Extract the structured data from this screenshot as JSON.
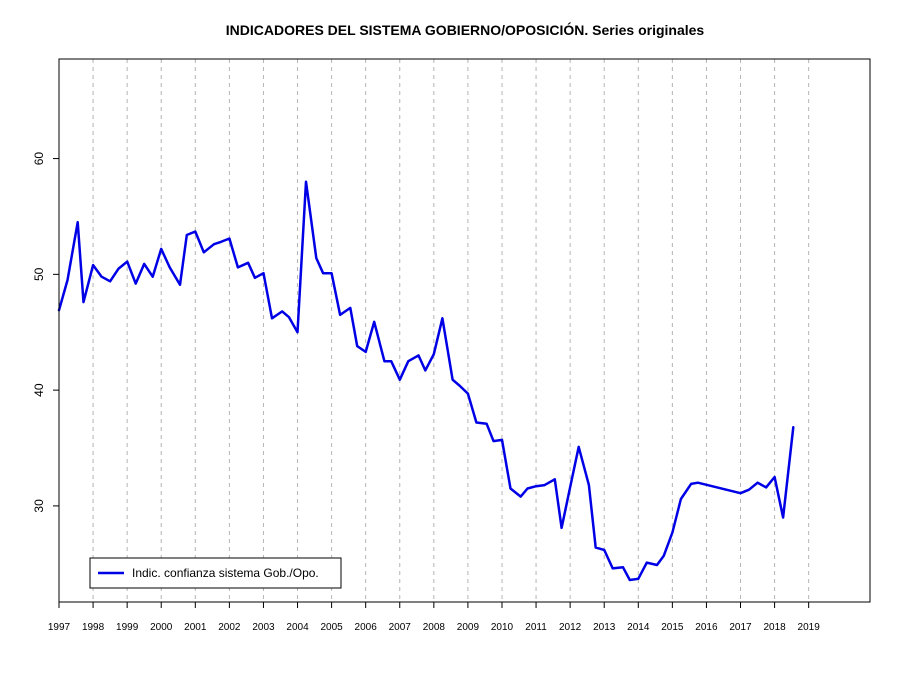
{
  "chart_data": {
    "type": "line",
    "title": "INDICADORES DEL SISTEMA GOBIERNO/OPOSICIÓN. Series originales",
    "xlabel": "",
    "ylabel": "",
    "xlim": [
      1997,
      2020.8
    ],
    "ylim": [
      21.7,
      68.6
    ],
    "y_ticks": [
      30,
      40,
      50,
      60
    ],
    "x_ticks": [
      1997,
      1998,
      1999,
      2000,
      2001,
      2002,
      2003,
      2004,
      2005,
      2006,
      2007,
      2008,
      2009,
      2010,
      2011,
      2012,
      2013,
      2014,
      2015,
      2016,
      2017,
      2018,
      2019
    ],
    "grid": "vertical-dashed",
    "legend_position": "bottom-left",
    "series": [
      {
        "name": "Indic. confianza sistema Gob./Opo.",
        "color": "#0000e6",
        "x": [
          1997.0,
          1997.25,
          1997.55,
          1997.72,
          1998.0,
          1998.25,
          1998.5,
          1998.75,
          1999.0,
          1999.25,
          1999.5,
          1999.75,
          2000.0,
          2000.25,
          2000.55,
          2000.75,
          2001.0,
          2001.25,
          2001.55,
          2001.75,
          2002.0,
          2002.25,
          2002.55,
          2002.75,
          2003.0,
          2003.25,
          2003.55,
          2003.75,
          2004.0,
          2004.25,
          2004.55,
          2004.75,
          2005.0,
          2005.25,
          2005.55,
          2005.75,
          2006.0,
          2006.25,
          2006.55,
          2006.75,
          2007.0,
          2007.25,
          2007.55,
          2007.75,
          2008.0,
          2008.25,
          2008.55,
          2008.75,
          2009.0,
          2009.25,
          2009.55,
          2009.75,
          2010.0,
          2010.25,
          2010.55,
          2010.75,
          2011.0,
          2011.25,
          2011.55,
          2011.75,
          2012.0,
          2012.25,
          2012.55,
          2012.75,
          2013.0,
          2013.25,
          2013.55,
          2013.75,
          2014.0,
          2014.25,
          2014.55,
          2014.75,
          2015.0,
          2015.25,
          2015.55,
          2015.75,
          2017.0,
          2017.25,
          2017.5,
          2017.75,
          2018.0,
          2018.25,
          2018.55
        ],
        "values": [
          46.9,
          49.5,
          54.5,
          47.6,
          50.8,
          49.8,
          49.4,
          50.5,
          51.1,
          49.2,
          50.9,
          49.8,
          52.2,
          50.6,
          49.1,
          53.4,
          53.7,
          51.9,
          52.6,
          52.8,
          53.1,
          50.6,
          51.0,
          49.7,
          50.1,
          46.2,
          46.8,
          46.3,
          45.0,
          58.0,
          51.4,
          50.1,
          50.1,
          46.5,
          47.1,
          43.8,
          43.3,
          45.9,
          42.5,
          42.5,
          40.9,
          42.5,
          43.0,
          41.7,
          43.1,
          46.2,
          40.9,
          40.4,
          39.7,
          37.2,
          37.1,
          35.6,
          35.7,
          31.5,
          30.8,
          31.5,
          31.7,
          31.8,
          32.3,
          28.1,
          31.6,
          35.1,
          31.8,
          26.4,
          26.2,
          24.6,
          24.7,
          23.6,
          23.7,
          25.1,
          24.9,
          25.7,
          27.7,
          30.6,
          31.9,
          32.0,
          31.1,
          31.4,
          32.0,
          31.6,
          32.5,
          29.0,
          36.8
        ]
      }
    ]
  }
}
